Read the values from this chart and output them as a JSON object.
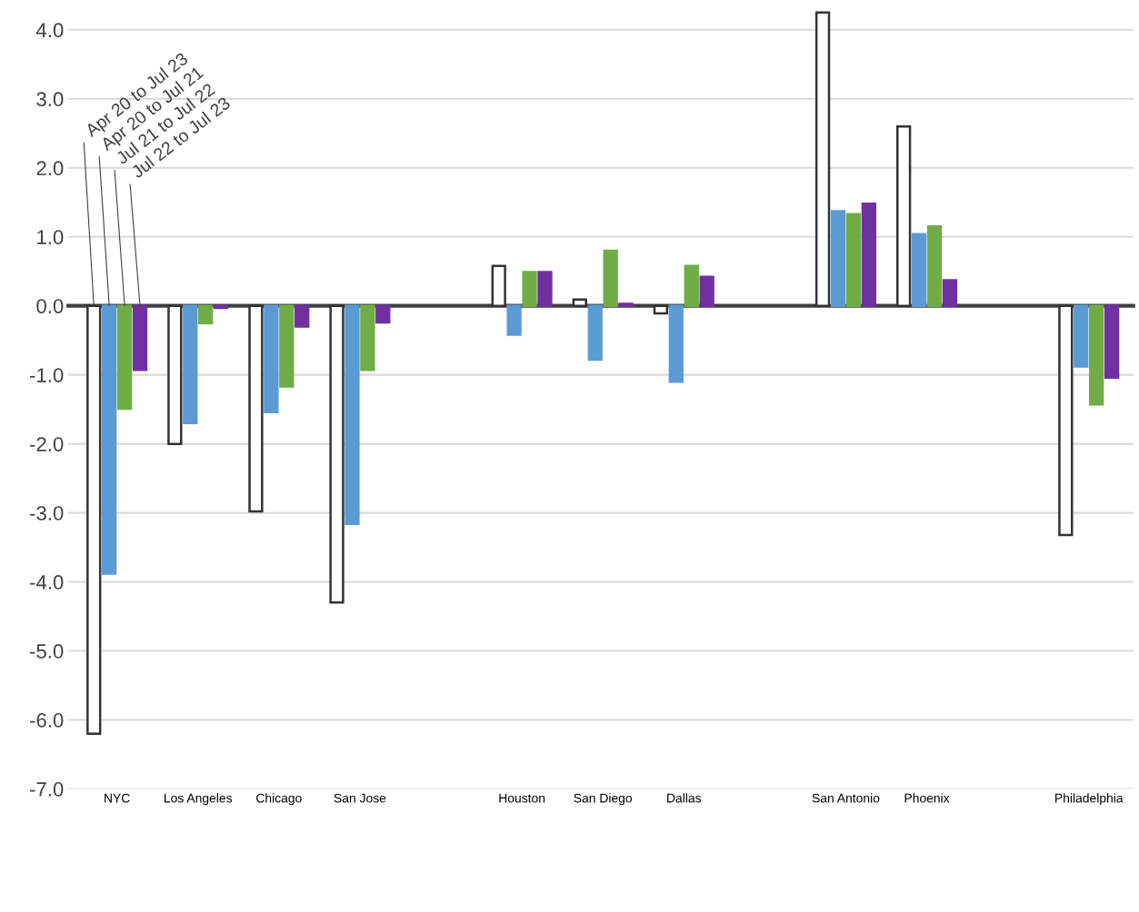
{
  "chart_data": {
    "type": "bar",
    "categories": [
      "NYC",
      "Los Angeles",
      "Chicago",
      "San Jose",
      null,
      "Houston",
      "San Diego",
      "Dallas",
      null,
      "San Antonio",
      "Phoenix",
      null,
      "Philadelphia"
    ],
    "series": [
      {
        "name": "Apr 20 to Jul 23",
        "color": "#ffffff",
        "values": [
          -6.2,
          -2.0,
          -2.98,
          -4.3,
          null,
          0.58,
          0.09,
          -0.11,
          null,
          4.25,
          2.6,
          null,
          -3.32
        ]
      },
      {
        "name": "Apr 20 to Jul 21",
        "color": "#5b9bd5",
        "values": [
          -3.88,
          -1.7,
          -1.54,
          -3.16,
          null,
          -0.42,
          -0.78,
          -1.1,
          null,
          1.37,
          1.04,
          null,
          -0.88
        ]
      },
      {
        "name": "Jul 21 to Jul 22",
        "color": "#70ad47",
        "values": [
          -1.49,
          -0.25,
          -1.17,
          -0.93,
          null,
          0.49,
          0.8,
          0.58,
          null,
          1.33,
          1.15,
          null,
          -1.43
        ]
      },
      {
        "name": "Jul 22 to Jul 23",
        "color": "#7030a0",
        "values": [
          -0.93,
          -0.03,
          -0.3,
          -0.24,
          null,
          0.49,
          0.03,
          0.42,
          null,
          1.48,
          0.37,
          null,
          -1.04
        ]
      }
    ],
    "ylim": [
      -7.0,
      4.3
    ],
    "yticks": [
      {
        "value": -7,
        "label": "-7.0"
      },
      {
        "value": -6,
        "label": "-6.0"
      },
      {
        "value": -5,
        "label": "-5.0"
      },
      {
        "value": -4,
        "label": "-4.0"
      },
      {
        "value": -3,
        "label": "-3.0"
      },
      {
        "value": -2,
        "label": "-2.0"
      },
      {
        "value": -1,
        "label": "-1.0"
      },
      {
        "value": 0,
        "label": "0.0"
      },
      {
        "value": 1,
        "label": "1.0"
      },
      {
        "value": 2,
        "label": "2.0"
      },
      {
        "value": 3,
        "label": "3.0"
      },
      {
        "value": 4,
        "label": "4.0"
      }
    ],
    "grid": "y"
  }
}
